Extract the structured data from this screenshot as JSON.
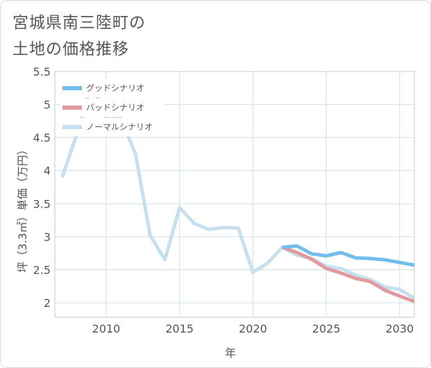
{
  "title_lines": [
    "宮城県南三陸町の",
    "土地の価格推移"
  ],
  "chart_data": {
    "type": "line",
    "title": "宮城県南三陸町の土地の価格推移",
    "xlabel": "年",
    "ylabel": "坪（3.3㎡）単価（万円）",
    "xlim": [
      2006.5,
      2031
    ],
    "ylim": [
      1.78,
      5.5
    ],
    "x_ticks": [
      2010,
      2015,
      2020,
      2025,
      2030
    ],
    "y_ticks": [
      2,
      2.5,
      3,
      3.5,
      4,
      4.5,
      5,
      5.5
    ],
    "grid": true,
    "legend_position": "top-left",
    "series": [
      {
        "name": "ノーマルシナリオ",
        "color": "#c6e0ee",
        "points": [
          [
            2007,
            3.9
          ],
          [
            2008,
            4.55
          ],
          [
            2009,
            5.33
          ],
          [
            2010,
            4.78
          ],
          [
            2011,
            4.79
          ],
          [
            2012,
            4.25
          ],
          [
            2013,
            3.02
          ],
          [
            2014,
            2.65
          ],
          [
            2015,
            3.44
          ],
          [
            2016,
            3.2
          ],
          [
            2017,
            3.11
          ],
          [
            2018,
            3.14
          ],
          [
            2019,
            3.13
          ],
          [
            2020,
            2.46
          ],
          [
            2021,
            2.6
          ],
          [
            2022,
            2.84
          ],
          [
            2023,
            2.72
          ],
          [
            2024,
            2.67
          ],
          [
            2025,
            2.55
          ],
          [
            2026,
            2.52
          ],
          [
            2027,
            2.42
          ],
          [
            2028,
            2.35
          ],
          [
            2029,
            2.24
          ],
          [
            2030,
            2.2
          ],
          [
            2031,
            2.07
          ]
        ]
      },
      {
        "name": "バッドシナリオ",
        "color": "#e39a9f",
        "points": [
          [
            2022,
            2.84
          ],
          [
            2023,
            2.76
          ],
          [
            2024,
            2.66
          ],
          [
            2025,
            2.52
          ],
          [
            2026,
            2.45
          ],
          [
            2027,
            2.37
          ],
          [
            2028,
            2.32
          ],
          [
            2029,
            2.19
          ],
          [
            2030,
            2.1
          ],
          [
            2031,
            2.02
          ]
        ]
      },
      {
        "name": "グッドシナリオ",
        "color": "#72bdeb",
        "points": [
          [
            2022,
            2.84
          ],
          [
            2023,
            2.86
          ],
          [
            2024,
            2.74
          ],
          [
            2025,
            2.71
          ],
          [
            2026,
            2.76
          ],
          [
            2027,
            2.68
          ],
          [
            2028,
            2.67
          ],
          [
            2029,
            2.65
          ],
          [
            2030,
            2.61
          ],
          [
            2031,
            2.57
          ]
        ]
      }
    ],
    "legend": [
      {
        "name": "グッドシナリオ",
        "color": "#72bdeb"
      },
      {
        "name": "バッドシナリオ",
        "color": "#e39a9f"
      },
      {
        "name": "ノーマルシナリオ",
        "color": "#c6e0ee"
      }
    ]
  }
}
